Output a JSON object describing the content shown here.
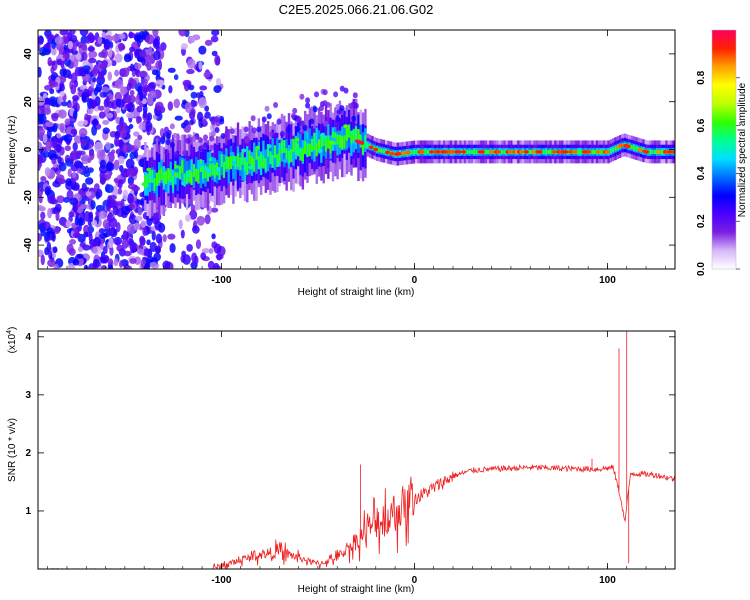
{
  "title": "C2E5.2025.066.21.06.G02",
  "chart_data": [
    {
      "type": "heatmap",
      "title": "C2E5.2025.066.21.06.G02",
      "xlabel": "Height of straight line (km)",
      "ylabel": "Frequency (Hz)",
      "xlim": [
        -195,
        135
      ],
      "ylim": [
        -50,
        50
      ],
      "x_ticks": [
        -100,
        0,
        100
      ],
      "y_ticks": [
        -40,
        -20,
        0,
        20,
        40
      ],
      "colorbar": {
        "label": "Normalized spectral amplitude",
        "range": [
          0,
          1
        ],
        "ticks": [
          "0.0",
          "0.2",
          "0.4",
          "0.6",
          "0.8"
        ],
        "colors": [
          "#ffffff",
          "#d6b8f8",
          "#7a1fe0",
          "#4a00ff",
          "#0000ff",
          "#0070ff",
          "#00e0ff",
          "#00ff90",
          "#30ff00",
          "#c0ff00",
          "#ffff00",
          "#ffa000",
          "#ff2000",
          "#ff0060"
        ]
      },
      "ridge": [
        {
          "x": -135,
          "f": -12
        },
        {
          "x": -120,
          "f": -10
        },
        {
          "x": -100,
          "f": -7
        },
        {
          "x": -80,
          "f": -4
        },
        {
          "x": -60,
          "f": 0
        },
        {
          "x": -45,
          "f": 3
        },
        {
          "x": -35,
          "f": 5
        },
        {
          "x": -28,
          "f": 3
        },
        {
          "x": -20,
          "f": 0
        },
        {
          "x": -10,
          "f": -2
        },
        {
          "x": 0,
          "f": -1
        },
        {
          "x": 20,
          "f": -1
        },
        {
          "x": 50,
          "f": -1
        },
        {
          "x": 80,
          "f": -1
        },
        {
          "x": 100,
          "f": -1
        },
        {
          "x": 108,
          "f": 2
        },
        {
          "x": 120,
          "f": -1
        },
        {
          "x": 135,
          "f": -1
        }
      ]
    },
    {
      "type": "line",
      "xlabel": "Height of straight line (km)",
      "ylabel": "SNR (10 * v/v)",
      "y_scale_label": "(x10",
      "y_scale_exp": "4",
      "y_scale_close": ")",
      "xlim": [
        -195,
        135
      ],
      "ylim": [
        0,
        4.1
      ],
      "x_ticks": [
        -100,
        0,
        100
      ],
      "y_ticks": [
        1,
        2,
        3,
        4
      ],
      "color": "#ee2222",
      "envelope": [
        {
          "x": -195,
          "y": 0.0
        },
        {
          "x": -105,
          "y": 0.0
        },
        {
          "x": -100,
          "y": 0.05
        },
        {
          "x": -90,
          "y": 0.15
        },
        {
          "x": -80,
          "y": 0.25
        },
        {
          "x": -70,
          "y": 0.3
        },
        {
          "x": -60,
          "y": 0.2
        },
        {
          "x": -50,
          "y": 0.08
        },
        {
          "x": -40,
          "y": 0.2
        },
        {
          "x": -30,
          "y": 0.5
        },
        {
          "x": -20,
          "y": 0.8
        },
        {
          "x": -10,
          "y": 1.0
        },
        {
          "x": 0,
          "y": 1.2
        },
        {
          "x": 10,
          "y": 1.4
        },
        {
          "x": 20,
          "y": 1.6
        },
        {
          "x": 30,
          "y": 1.7
        },
        {
          "x": 40,
          "y": 1.72
        },
        {
          "x": 60,
          "y": 1.75
        },
        {
          "x": 80,
          "y": 1.73
        },
        {
          "x": 95,
          "y": 1.72
        },
        {
          "x": 103,
          "y": 1.75
        },
        {
          "x": 107,
          "y": 1.2
        },
        {
          "x": 109,
          "y": 0.8
        },
        {
          "x": 112,
          "y": 1.65
        },
        {
          "x": 125,
          "y": 1.62
        },
        {
          "x": 135,
          "y": 1.55
        }
      ],
      "spikes": [
        {
          "x": -28,
          "y": 1.8
        },
        {
          "x": 92,
          "y": 1.9
        },
        {
          "x": 106,
          "y": 3.8
        },
        {
          "x": 110,
          "y": 4.1
        },
        {
          "x": 111,
          "y": 0.1
        }
      ]
    }
  ]
}
